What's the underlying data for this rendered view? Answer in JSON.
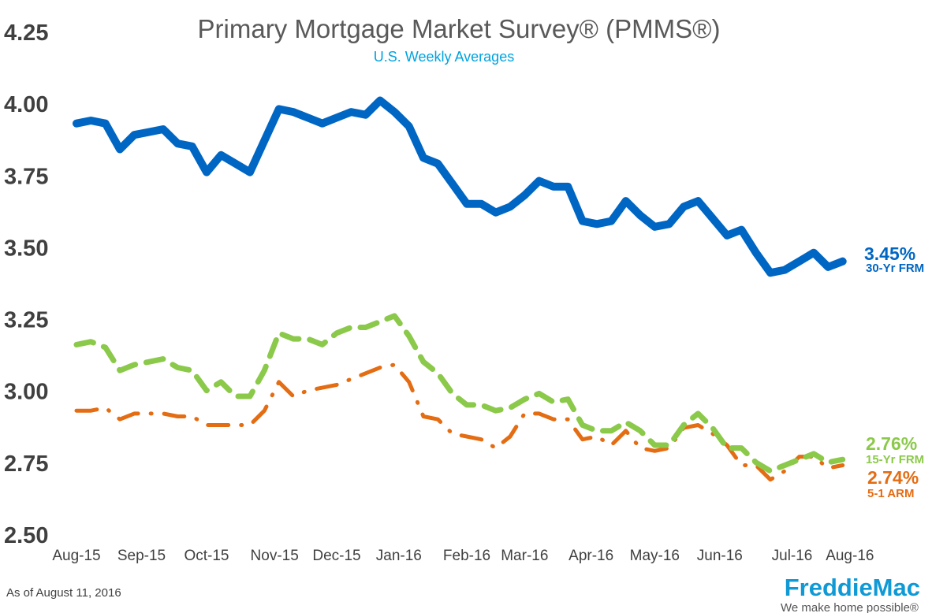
{
  "chart_data": {
    "type": "line",
    "title": "Primary Mortgage Market Survey® (PMMS®)",
    "subtitle": "U.S. Weekly Averages",
    "xlabel": "",
    "ylabel": "",
    "ylim": [
      2.5,
      4.25
    ],
    "yticks": [
      "4.25",
      "4.00",
      "3.75",
      "3.50",
      "3.25",
      "3.00",
      "2.75",
      "2.50"
    ],
    "ytick_values": [
      4.25,
      4.0,
      3.75,
      3.5,
      3.25,
      3.0,
      2.75,
      2.5
    ],
    "x_tick_labels": [
      "Aug-15",
      "Sep-15",
      "Oct-15",
      "Nov-15",
      "Dec-15",
      "Jan-16",
      "Feb-16",
      "Mar-16",
      "Apr-16",
      "May-16",
      "Jun-16",
      "Jul-16",
      "Aug-16"
    ],
    "x_tick_weeks": [
      0,
      4.5,
      9,
      13.7,
      18,
      22.3,
      27,
      31,
      35.6,
      40,
      44.5,
      49.5,
      53.5
    ],
    "x_range_weeks": [
      0,
      54
    ],
    "grid": false,
    "series": [
      {
        "name": "30-Yr FRM",
        "color": "#0066c4",
        "style": "solid",
        "end_value_label": "3.45%",
        "end_name_label": "30-Yr FRM",
        "values": [
          3.93,
          3.94,
          3.93,
          3.84,
          3.89,
          3.9,
          3.91,
          3.86,
          3.85,
          3.76,
          3.82,
          3.79,
          3.76,
          3.87,
          3.98,
          3.97,
          3.95,
          3.93,
          3.95,
          3.97,
          3.96,
          4.01,
          3.97,
          3.92,
          3.81,
          3.79,
          3.72,
          3.65,
          3.65,
          3.62,
          3.64,
          3.68,
          3.73,
          3.71,
          3.71,
          3.59,
          3.58,
          3.59,
          3.66,
          3.61,
          3.57,
          3.58,
          3.64,
          3.66,
          3.6,
          3.54,
          3.56,
          3.48,
          3.41,
          3.42,
          3.45,
          3.48,
          3.43,
          3.45
        ]
      },
      {
        "name": "15-Yr FRM",
        "color": "#8bc94a",
        "style": "dashed",
        "end_value_label": "2.76%",
        "end_name_label": "15-Yr FRM",
        "values": [
          3.16,
          3.17,
          3.15,
          3.07,
          3.09,
          3.1,
          3.11,
          3.08,
          3.07,
          3.0,
          3.03,
          2.98,
          2.98,
          3.07,
          3.2,
          3.18,
          3.18,
          3.16,
          3.2,
          3.22,
          3.22,
          3.24,
          3.26,
          3.19,
          3.1,
          3.06,
          2.99,
          2.95,
          2.95,
          2.93,
          2.94,
          2.97,
          2.99,
          2.96,
          2.97,
          2.88,
          2.86,
          2.86,
          2.89,
          2.86,
          2.81,
          2.81,
          2.88,
          2.92,
          2.87,
          2.8,
          2.8,
          2.75,
          2.72,
          2.74,
          2.76,
          2.78,
          2.75,
          2.76
        ]
      },
      {
        "name": "5-1 ARM",
        "color": "#e46c12",
        "style": "dashdot",
        "end_value_label": "2.74%",
        "end_name_label": "5-1 ARM",
        "values": [
          2.93,
          2.93,
          2.94,
          2.9,
          2.92,
          2.92,
          2.92,
          2.91,
          2.91,
          2.88,
          2.88,
          2.88,
          2.88,
          2.93,
          3.03,
          2.98,
          3.0,
          3.01,
          3.02,
          3.04,
          3.06,
          3.08,
          3.09,
          3.03,
          2.91,
          2.9,
          2.85,
          2.84,
          2.83,
          2.8,
          2.84,
          2.92,
          2.92,
          2.9,
          2.9,
          2.83,
          2.84,
          2.81,
          2.86,
          2.8,
          2.79,
          2.8,
          2.87,
          2.88,
          2.85,
          2.81,
          2.74,
          2.74,
          2.69,
          2.72,
          2.77,
          2.77,
          2.73,
          2.74
        ]
      }
    ]
  },
  "footer": {
    "as_of": "As of August 11, 2016",
    "logo_text": "FreddieMac",
    "tagline": "We make home possible®"
  },
  "colors": {
    "frm30": "#0066c4",
    "frm15": "#8bc94a",
    "arm51": "#e46c12",
    "brand": "#0f9ad6"
  }
}
